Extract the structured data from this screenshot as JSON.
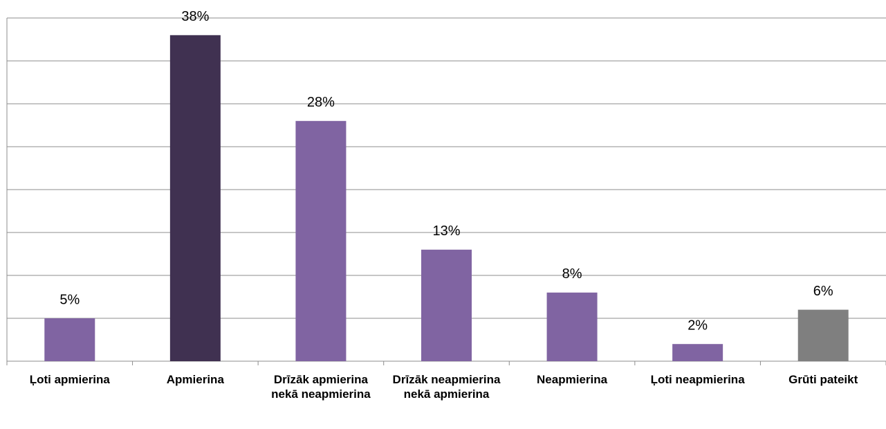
{
  "chart_data": {
    "type": "bar",
    "categories": [
      "Ļoti apmierina",
      "Apmierina",
      "Drīzāk apmierina nekā neapmierina",
      "Drīzāk neapmierina nekā apmierina",
      "Neapmierina",
      "Ļoti neapmierina",
      "Grūti pateikt"
    ],
    "values": [
      5,
      38,
      28,
      13,
      8,
      2,
      6
    ],
    "value_labels": [
      "5%",
      "38%",
      "28%",
      "13%",
      "8%",
      "2%",
      "6%"
    ],
    "colors": [
      "#8064a2",
      "#403151",
      "#8064a2",
      "#8064a2",
      "#8064a2",
      "#8064a2",
      "#7f7f7f"
    ],
    "ylim": [
      0,
      40
    ],
    "yticks": [
      0,
      5,
      10,
      15,
      20,
      25,
      30,
      35,
      40
    ],
    "grid": true
  }
}
